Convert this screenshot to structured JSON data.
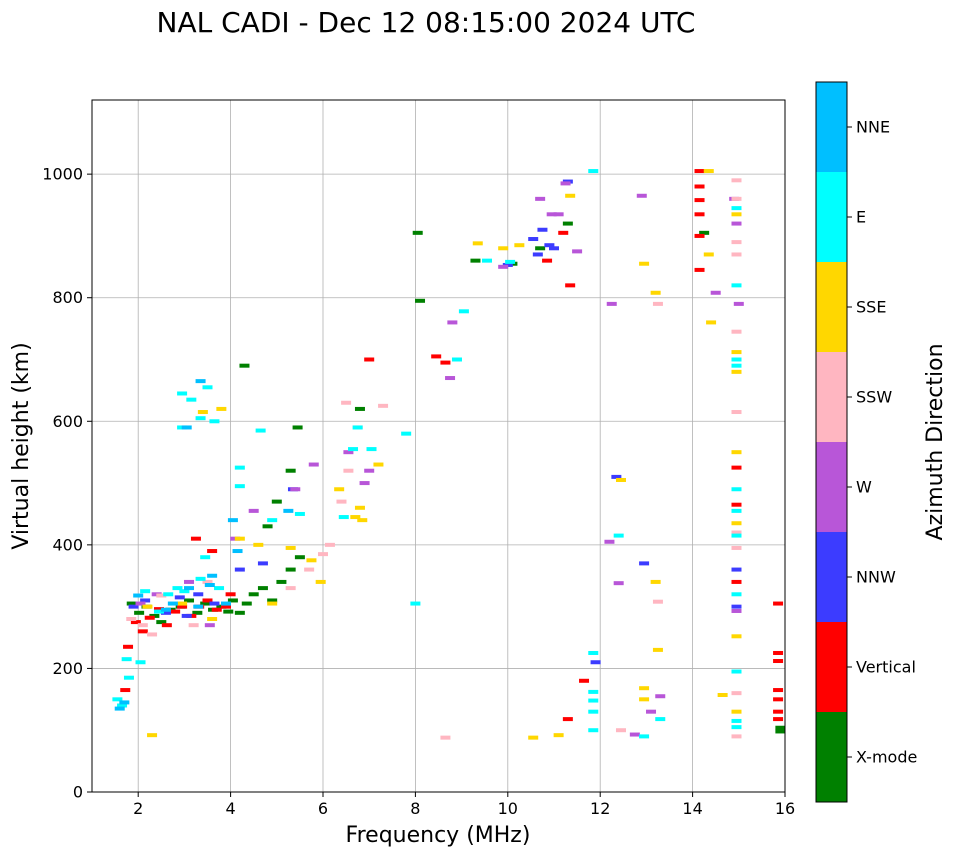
{
  "chart_data": {
    "type": "scatter",
    "title": "NAL CADI - Dec 12 08:15:00 2024 UTC",
    "xlabel": "Frequency (MHz)",
    "ylabel": "Virtual height (km)",
    "xlim": [
      1,
      16
    ],
    "ylim": [
      0,
      1120
    ],
    "xticks": [
      2,
      4,
      6,
      8,
      10,
      12,
      14,
      16
    ],
    "yticks": [
      0,
      200,
      400,
      600,
      800,
      1000
    ],
    "grid": true,
    "colorbar": {
      "label": "Azimuth Direction",
      "categories": [
        "X-mode",
        "Vertical",
        "NNW",
        "W",
        "SSW",
        "SSE",
        "E",
        "NNE"
      ],
      "colors": [
        "#008000",
        "#ff0000",
        "#3c3cff",
        "#b856d8",
        "#ffb6c1",
        "#ffd700",
        "#00ffff",
        "#00bfff"
      ]
    },
    "series": [
      {
        "name": "X-mode",
        "points": [
          [
            1.86,
            305
          ],
          [
            2.02,
            290
          ],
          [
            2.18,
            300
          ],
          [
            2.35,
            285
          ],
          [
            2.5,
            275
          ],
          [
            2.7,
            295
          ],
          [
            2.92,
            300
          ],
          [
            3.1,
            310
          ],
          [
            3.28,
            290
          ],
          [
            3.45,
            305
          ],
          [
            3.62,
            295
          ],
          [
            3.8,
            300
          ],
          [
            3.95,
            292
          ],
          [
            4.05,
            310
          ],
          [
            4.2,
            290
          ],
          [
            4.35,
            305
          ],
          [
            4.5,
            320
          ],
          [
            4.7,
            330
          ],
          [
            4.9,
            310
          ],
          [
            5.1,
            340
          ],
          [
            5.3,
            360
          ],
          [
            5.5,
            380
          ],
          [
            4.8,
            430
          ],
          [
            5.0,
            470
          ],
          [
            5.3,
            520
          ],
          [
            5.45,
            590
          ],
          [
            4.3,
            690
          ],
          [
            8.05,
            905
          ],
          [
            8.1,
            795
          ],
          [
            9.3,
            860
          ],
          [
            10.1,
            855
          ],
          [
            10.7,
            880
          ],
          [
            11.3,
            920
          ],
          [
            14.25,
            905
          ],
          [
            15.9,
            98
          ],
          [
            15.9,
            104
          ],
          [
            6.8,
            620
          ]
        ]
      },
      {
        "name": "Vertical",
        "points": [
          [
            1.72,
            165
          ],
          [
            1.78,
            235
          ],
          [
            1.95,
            275
          ],
          [
            2.1,
            260
          ],
          [
            2.25,
            282
          ],
          [
            2.45,
            296
          ],
          [
            2.62,
            270
          ],
          [
            2.8,
            292
          ],
          [
            2.95,
            300
          ],
          [
            3.15,
            285
          ],
          [
            3.32,
            300
          ],
          [
            3.5,
            310
          ],
          [
            3.7,
            295
          ],
          [
            3.9,
            300
          ],
          [
            4.0,
            320
          ],
          [
            3.6,
            390
          ],
          [
            3.25,
            410
          ],
          [
            8.45,
            705
          ],
          [
            8.65,
            695
          ],
          [
            7.0,
            700
          ],
          [
            10.85,
            860
          ],
          [
            11.2,
            905
          ],
          [
            11.35,
            820
          ],
          [
            11.65,
            180
          ],
          [
            11.3,
            118
          ],
          [
            14.15,
            1005
          ],
          [
            14.15,
            980
          ],
          [
            14.15,
            958
          ],
          [
            14.15,
            935
          ],
          [
            14.15,
            900
          ],
          [
            14.15,
            845
          ],
          [
            14.95,
            525
          ],
          [
            14.95,
            465
          ],
          [
            14.95,
            340
          ],
          [
            15.85,
            305
          ],
          [
            15.85,
            225
          ],
          [
            15.85,
            212
          ],
          [
            15.85,
            165
          ],
          [
            15.85,
            150
          ],
          [
            15.85,
            130
          ],
          [
            15.85,
            118
          ]
        ]
      },
      {
        "name": "NNW",
        "points": [
          [
            1.9,
            300
          ],
          [
            2.15,
            310
          ],
          [
            2.6,
            290
          ],
          [
            2.9,
            315
          ],
          [
            3.05,
            285
          ],
          [
            3.3,
            320
          ],
          [
            3.65,
            305
          ],
          [
            4.2,
            360
          ],
          [
            4.7,
            370
          ],
          [
            5.35,
            490
          ],
          [
            10.0,
            853
          ],
          [
            10.55,
            895
          ],
          [
            10.65,
            870
          ],
          [
            10.75,
            910
          ],
          [
            10.9,
            885
          ],
          [
            11.0,
            880
          ],
          [
            11.9,
            210
          ],
          [
            12.35,
            510
          ],
          [
            12.95,
            370
          ],
          [
            14.95,
            360
          ],
          [
            14.95,
            300
          ],
          [
            11.3,
            988
          ]
        ]
      },
      {
        "name": "W",
        "points": [
          [
            2.05,
            305
          ],
          [
            2.4,
            320
          ],
          [
            3.1,
            340
          ],
          [
            3.55,
            270
          ],
          [
            4.1,
            410
          ],
          [
            4.5,
            455
          ],
          [
            5.4,
            490
          ],
          [
            5.8,
            530
          ],
          [
            6.55,
            550
          ],
          [
            6.9,
            500
          ],
          [
            7.0,
            520
          ],
          [
            8.8,
            760
          ],
          [
            8.75,
            670
          ],
          [
            9.9,
            850
          ],
          [
            10.7,
            960
          ],
          [
            10.95,
            935
          ],
          [
            11.1,
            935
          ],
          [
            11.25,
            985
          ],
          [
            11.5,
            875
          ],
          [
            12.2,
            405
          ],
          [
            12.25,
            790
          ],
          [
            12.4,
            338
          ],
          [
            12.9,
            965
          ],
          [
            13.1,
            130
          ],
          [
            13.3,
            155
          ],
          [
            14.9,
            960
          ],
          [
            14.95,
            920
          ],
          [
            15.0,
            790
          ],
          [
            14.5,
            808
          ],
          [
            14.95,
            293
          ],
          [
            12.75,
            93
          ]
        ]
      },
      {
        "name": "SSW",
        "points": [
          [
            1.85,
            280
          ],
          [
            2.1,
            270
          ],
          [
            2.3,
            255
          ],
          [
            2.5,
            318
          ],
          [
            3.2,
            270
          ],
          [
            3.5,
            340
          ],
          [
            5.3,
            330
          ],
          [
            5.7,
            360
          ],
          [
            6.0,
            385
          ],
          [
            6.15,
            400
          ],
          [
            6.4,
            470
          ],
          [
            6.55,
            520
          ],
          [
            6.75,
            590
          ],
          [
            6.5,
            630
          ],
          [
            7.3,
            625
          ],
          [
            8.65,
            88
          ],
          [
            12.45,
            100
          ],
          [
            13.25,
            790
          ],
          [
            13.25,
            308
          ],
          [
            14.95,
            990
          ],
          [
            14.95,
            960
          ],
          [
            14.95,
            890
          ],
          [
            14.95,
            870
          ],
          [
            14.95,
            745
          ],
          [
            14.95,
            700
          ],
          [
            14.95,
            615
          ],
          [
            14.95,
            420
          ],
          [
            14.95,
            395
          ],
          [
            14.95,
            160
          ],
          [
            14.95,
            90
          ]
        ]
      },
      {
        "name": "SSE",
        "points": [
          [
            2.3,
            92
          ],
          [
            2.2,
            300
          ],
          [
            2.95,
            305
          ],
          [
            3.4,
            615
          ],
          [
            3.6,
            280
          ],
          [
            3.8,
            620
          ],
          [
            4.2,
            410
          ],
          [
            4.6,
            400
          ],
          [
            4.9,
            305
          ],
          [
            5.3,
            395
          ],
          [
            5.75,
            375
          ],
          [
            5.95,
            340
          ],
          [
            6.35,
            490
          ],
          [
            6.7,
            445
          ],
          [
            6.8,
            460
          ],
          [
            6.85,
            440
          ],
          [
            7.2,
            530
          ],
          [
            9.35,
            888
          ],
          [
            9.9,
            880
          ],
          [
            10.25,
            885
          ],
          [
            10.55,
            88
          ],
          [
            11.1,
            92
          ],
          [
            11.35,
            965
          ],
          [
            12.45,
            505
          ],
          [
            12.95,
            855
          ],
          [
            13.2,
            340
          ],
          [
            13.2,
            808
          ],
          [
            13.25,
            230
          ],
          [
            12.95,
            168
          ],
          [
            12.95,
            150
          ],
          [
            14.35,
            1005
          ],
          [
            14.4,
            760
          ],
          [
            14.35,
            870
          ],
          [
            14.95,
            935
          ],
          [
            14.95,
            712
          ],
          [
            14.95,
            680
          ],
          [
            14.95,
            550
          ],
          [
            14.95,
            435
          ],
          [
            14.95,
            252
          ],
          [
            14.65,
            157
          ],
          [
            14.95,
            130
          ]
        ]
      },
      {
        "name": "E",
        "points": [
          [
            1.55,
            150
          ],
          [
            1.65,
            140
          ],
          [
            1.75,
            215
          ],
          [
            1.8,
            185
          ],
          [
            2.05,
            210
          ],
          [
            2.15,
            325
          ],
          [
            2.45,
            292
          ],
          [
            2.65,
            320
          ],
          [
            2.85,
            330
          ],
          [
            3.0,
            325
          ],
          [
            3.35,
            345
          ],
          [
            3.45,
            380
          ],
          [
            3.75,
            330
          ],
          [
            2.95,
            645
          ],
          [
            3.15,
            635
          ],
          [
            3.35,
            605
          ],
          [
            2.95,
            590
          ],
          [
            3.5,
            655
          ],
          [
            3.65,
            600
          ],
          [
            4.2,
            525
          ],
          [
            4.65,
            585
          ],
          [
            4.2,
            495
          ],
          [
            4.9,
            440
          ],
          [
            5.5,
            450
          ],
          [
            6.45,
            445
          ],
          [
            6.65,
            555
          ],
          [
            6.75,
            590
          ],
          [
            7.05,
            555
          ],
          [
            7.8,
            580
          ],
          [
            8.0,
            305
          ],
          [
            8.9,
            700
          ],
          [
            9.05,
            778
          ],
          [
            9.55,
            860
          ],
          [
            10.05,
            858
          ],
          [
            11.85,
            1005
          ],
          [
            11.85,
            225
          ],
          [
            11.85,
            162
          ],
          [
            11.85,
            148
          ],
          [
            11.85,
            130
          ],
          [
            11.85,
            100
          ],
          [
            12.4,
            415
          ],
          [
            12.95,
            90
          ],
          [
            13.3,
            118
          ],
          [
            14.95,
            945
          ],
          [
            14.95,
            820
          ],
          [
            14.95,
            700
          ],
          [
            14.95,
            690
          ],
          [
            14.95,
            490
          ],
          [
            14.95,
            455
          ],
          [
            14.95,
            415
          ],
          [
            14.95,
            320
          ],
          [
            14.95,
            195
          ],
          [
            14.95,
            115
          ],
          [
            14.95,
            105
          ]
        ]
      },
      {
        "name": "NNE",
        "points": [
          [
            1.6,
            135
          ],
          [
            1.7,
            145
          ],
          [
            2.0,
            318
          ],
          [
            2.6,
            295
          ],
          [
            2.75,
            305
          ],
          [
            3.1,
            330
          ],
          [
            3.3,
            300
          ],
          [
            3.55,
            335
          ],
          [
            3.6,
            350
          ],
          [
            3.9,
            305
          ],
          [
            3.05,
            590
          ],
          [
            3.35,
            665
          ],
          [
            4.05,
            440
          ],
          [
            4.15,
            390
          ],
          [
            5.25,
            455
          ]
        ]
      }
    ]
  }
}
